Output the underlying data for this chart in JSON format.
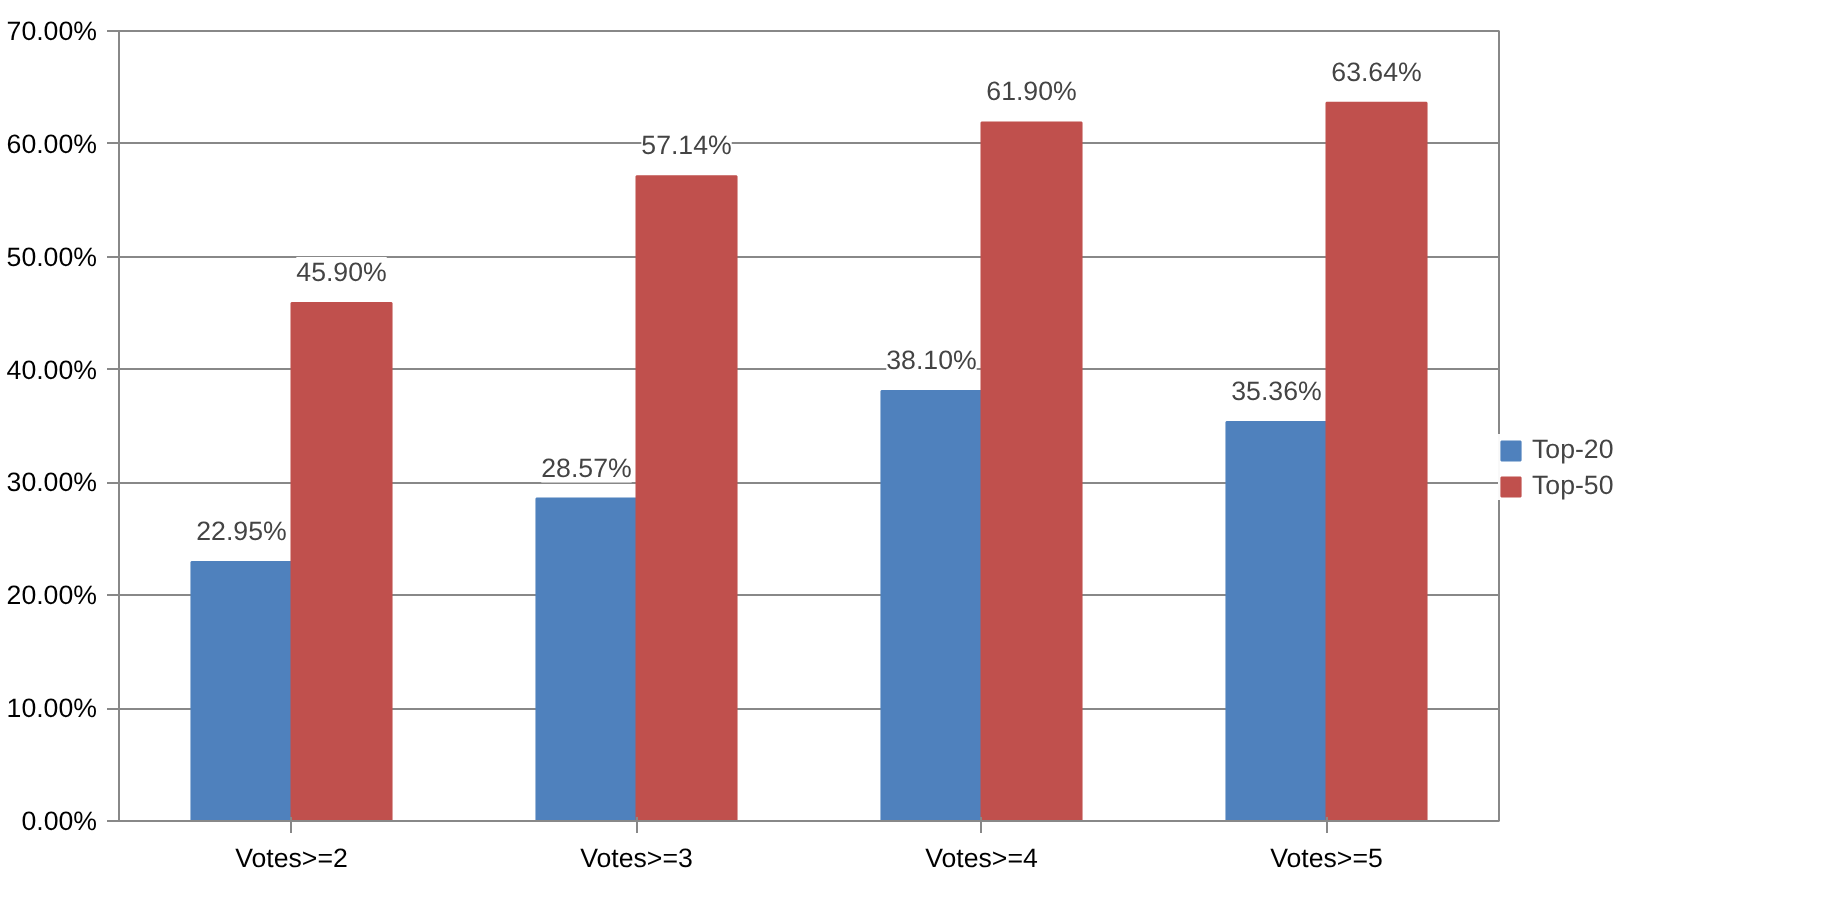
{
  "chart_data": {
    "type": "bar",
    "categories": [
      "Votes>=2",
      "Votes>=3",
      "Votes>=4",
      "Votes>=5"
    ],
    "series": [
      {
        "name": "Top-20",
        "color": "#4f81bd",
        "values": [
          22.95,
          28.57,
          38.1,
          35.36
        ],
        "value_labels": [
          "22.95%",
          "28.57%",
          "38.10%",
          "35.36%"
        ]
      },
      {
        "name": "Top-50",
        "color": "#c0504d",
        "values": [
          45.9,
          57.14,
          61.9,
          63.64
        ],
        "value_labels": [
          "45.90%",
          "57.14%",
          "61.90%",
          "63.64%"
        ]
      }
    ],
    "ylim": [
      0,
      70
    ],
    "yticks": [
      {
        "value": 0,
        "label": "0.00%"
      },
      {
        "value": 10,
        "label": "10.00%"
      },
      {
        "value": 20,
        "label": "20.00%"
      },
      {
        "value": 30,
        "label": "30.00%"
      },
      {
        "value": 40,
        "label": "40.00%"
      },
      {
        "value": 50,
        "label": "50.00%"
      },
      {
        "value": 60,
        "label": "60.00%"
      },
      {
        "value": 70,
        "label": "70.00%"
      }
    ],
    "grid": "y",
    "legend": "right"
  }
}
